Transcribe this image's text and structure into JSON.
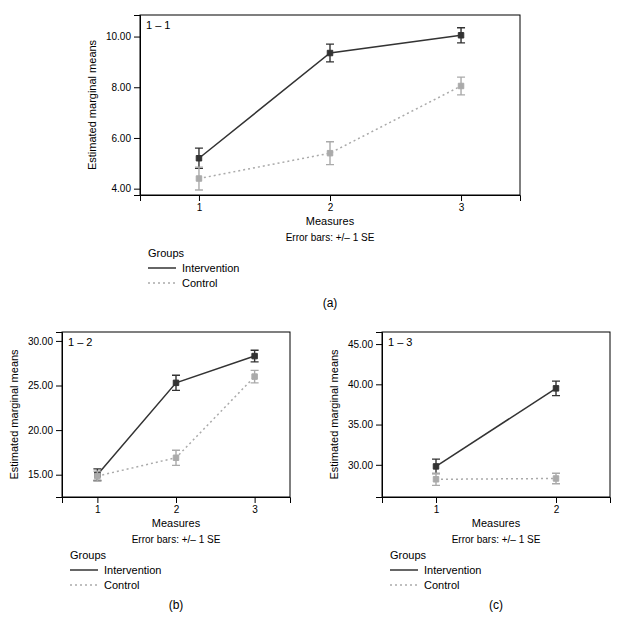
{
  "chart_data": [
    {
      "type": "line",
      "x_label": "Measures",
      "y_label": "Estimated marginal means",
      "annotations": [
        "1 – 1",
        "Error bars: +/– 1 SE",
        "Groups",
        "(a)"
      ],
      "x": [
        1,
        2,
        3
      ],
      "xlim": [
        0.55,
        3.45
      ],
      "xticks": [
        1,
        2,
        3
      ],
      "ylim": [
        3.75,
        10.85
      ],
      "yticks": [
        {
          "value": 4.0,
          "label": "4.00"
        },
        {
          "value": 6.0,
          "label": "6.00"
        },
        {
          "value": 8.0,
          "label": "8.00"
        },
        {
          "value": 10.0,
          "label": "10.00"
        }
      ],
      "grid": false,
      "series": [
        {
          "name": "Intervention",
          "color": "#333333",
          "line_style": "solid",
          "marker": "square",
          "values": [
            5.2,
            9.35,
            10.05
          ],
          "yerr": [
            0.4,
            0.35,
            0.3
          ]
        },
        {
          "name": "Control",
          "color": "#aaaaaa",
          "line_style": "dotted",
          "marker": "square",
          "values": [
            4.4,
            5.4,
            8.05
          ],
          "yerr": [
            0.45,
            0.45,
            0.35
          ]
        }
      ]
    },
    {
      "type": "line",
      "x_label": "Measures",
      "y_label": "Estimated marginal means",
      "annotations": [
        "1 – 2",
        "Error bars: +/– 1 SE",
        "Groups",
        "(b)"
      ],
      "x": [
        1,
        2,
        3
      ],
      "xlim": [
        0.55,
        3.45
      ],
      "xticks": [
        1,
        2,
        3
      ],
      "ylim": [
        12.5,
        31.0
      ],
      "yticks": [
        {
          "value": 15.0,
          "label": "15.00"
        },
        {
          "value": 20.0,
          "label": "20.00"
        },
        {
          "value": 25.0,
          "label": "25.00"
        },
        {
          "value": 30.0,
          "label": "30.00"
        }
      ],
      "grid": false,
      "series": [
        {
          "name": "Intervention",
          "color": "#333333",
          "line_style": "solid",
          "marker": "square",
          "values": [
            15.0,
            25.3,
            28.3
          ],
          "yerr": [
            0.65,
            0.85,
            0.65
          ]
        },
        {
          "name": "Control",
          "color": "#aaaaaa",
          "line_style": "dotted",
          "marker": "square",
          "values": [
            14.85,
            16.9,
            26.0
          ],
          "yerr": [
            0.55,
            0.85,
            0.7
          ]
        }
      ]
    },
    {
      "type": "line",
      "x_label": "Measures",
      "y_label": "Estimated marginal means",
      "annotations": [
        "1 – 3",
        "Error bars: +/– 1 SE",
        "Groups",
        "(c)"
      ],
      "x": [
        1,
        2
      ],
      "xlim": [
        0.55,
        2.45
      ],
      "xticks": [
        1,
        2
      ],
      "ylim": [
        26.0,
        46.5
      ],
      "yticks": [
        {
          "value": 30.0,
          "label": "30.00"
        },
        {
          "value": 35.0,
          "label": "35.00"
        },
        {
          "value": 40.0,
          "label": "40.00"
        },
        {
          "value": 45.0,
          "label": "45.00"
        }
      ],
      "grid": false,
      "series": [
        {
          "name": "Intervention",
          "color": "#333333",
          "line_style": "solid",
          "marker": "square",
          "values": [
            29.8,
            39.5
          ],
          "yerr": [
            0.9,
            0.9
          ]
        },
        {
          "name": "Control",
          "color": "#aaaaaa",
          "line_style": "dotted",
          "marker": "square",
          "values": [
            28.2,
            28.3
          ],
          "yerr": [
            0.75,
            0.65
          ]
        }
      ]
    }
  ]
}
